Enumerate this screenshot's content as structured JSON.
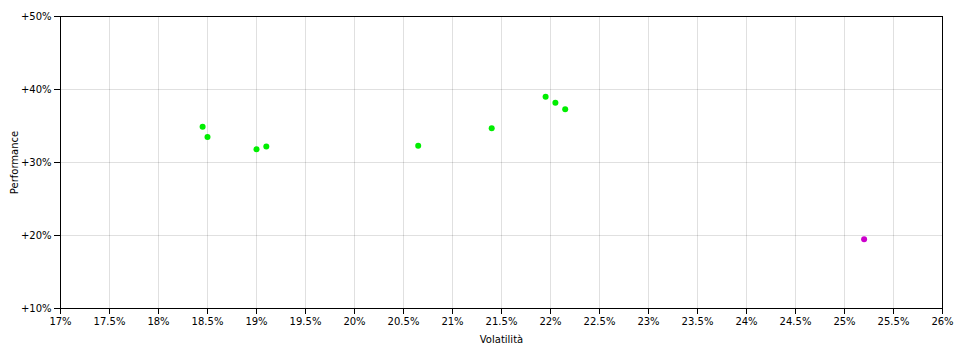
{
  "chart_data": {
    "type": "scatter",
    "xlabel": "Volatilità",
    "ylabel": "Performance",
    "xlim": [
      0.17,
      0.26
    ],
    "ylim": [
      0.1,
      0.5
    ],
    "xticks": [
      {
        "value": 0.17,
        "label": "17%"
      },
      {
        "value": 0.175,
        "label": "17.5%"
      },
      {
        "value": 0.18,
        "label": "18%"
      },
      {
        "value": 0.185,
        "label": "18.5%"
      },
      {
        "value": 0.19,
        "label": "19%"
      },
      {
        "value": 0.195,
        "label": "19.5%"
      },
      {
        "value": 0.2,
        "label": "20%"
      },
      {
        "value": 0.205,
        "label": "20.5%"
      },
      {
        "value": 0.21,
        "label": "21%"
      },
      {
        "value": 0.215,
        "label": "21.5%"
      },
      {
        "value": 0.22,
        "label": "22%"
      },
      {
        "value": 0.225,
        "label": "22.5%"
      },
      {
        "value": 0.23,
        "label": "23%"
      },
      {
        "value": 0.235,
        "label": "23.5%"
      },
      {
        "value": 0.24,
        "label": "24%"
      },
      {
        "value": 0.245,
        "label": "24.5%"
      },
      {
        "value": 0.25,
        "label": "25%"
      },
      {
        "value": 0.255,
        "label": "25.5%"
      },
      {
        "value": 0.26,
        "label": "26%"
      }
    ],
    "yticks": [
      {
        "value": 0.1,
        "label": "+10%"
      },
      {
        "value": 0.2,
        "label": "+20%"
      },
      {
        "value": 0.3,
        "label": "+30%"
      },
      {
        "value": 0.4,
        "label": "+40%"
      },
      {
        "value": 0.5,
        "label": "+50%"
      }
    ],
    "grid": true,
    "series": [
      {
        "color": "#00ee00",
        "x": [
          0.1845,
          0.185,
          0.19,
          0.191,
          0.2065,
          0.214,
          0.2195,
          0.2205,
          0.2215
        ],
        "y": [
          0.349,
          0.335,
          0.318,
          0.322,
          0.323,
          0.347,
          0.39,
          0.382,
          0.373
        ]
      },
      {
        "color": "#cc00cc",
        "x": [
          0.252
        ],
        "y": [
          0.195
        ]
      }
    ]
  }
}
